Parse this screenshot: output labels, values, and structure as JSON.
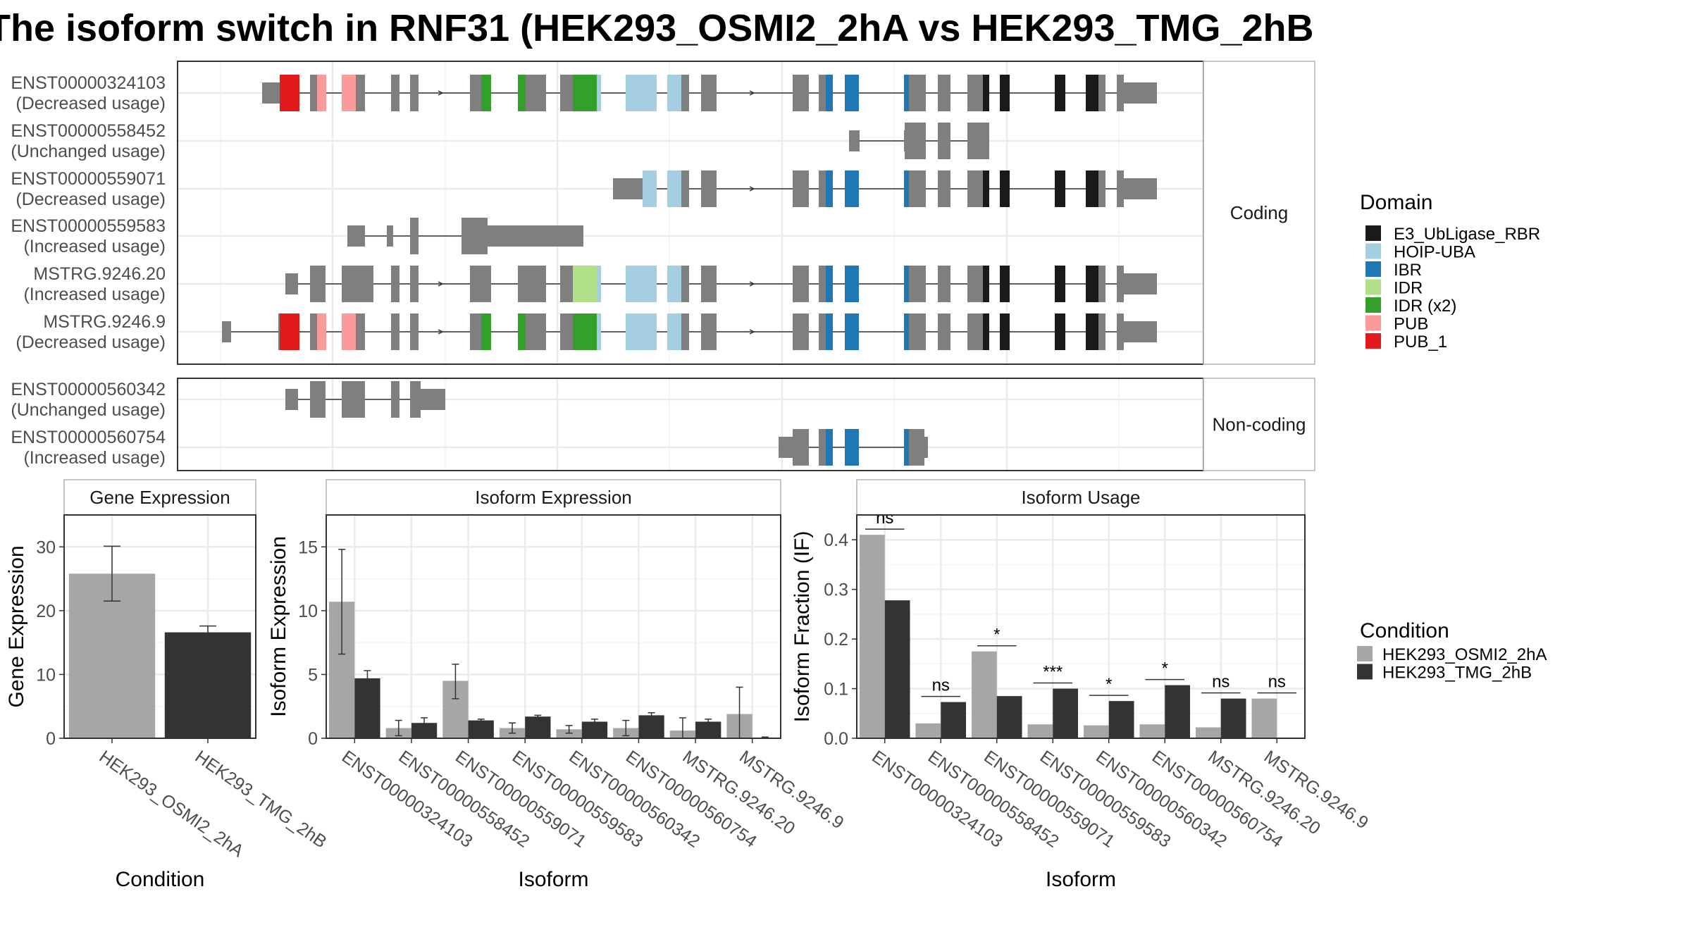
{
  "title": "The isoform switch in RNF31 (HEK293_OSMI2_2hA vs HEK293_TMG_2hB",
  "colors": {
    "E3_UbLigase_RBR": "#1a1a1a",
    "HOIP-UBA": "#a6cee3",
    "IBR": "#1f78b4",
    "IDR": "#b2df8a",
    "IDR (x2)": "#33a02c",
    "PUB": "#fb9a99",
    "PUB_1": "#e31a1c",
    "exon": "#7f7f7f",
    "cond1": "#a6a6a6",
    "cond2": "#333333",
    "grid": "#ebebeb",
    "frame": "#333333"
  },
  "structure": {
    "facets": [
      "Coding",
      "Non-coding"
    ],
    "domain_legend_title": "Domain",
    "domain_legend": [
      "E3_UbLigase_RBR",
      "HOIP-UBA",
      "IBR",
      "IDR",
      "IDR (x2)",
      "PUB",
      "PUB_1"
    ],
    "transcripts": [
      {
        "id": "ENST00000324103",
        "usage": "(Decreased usage)",
        "group": "Coding"
      },
      {
        "id": "ENST00000558452",
        "usage": "(Unchanged usage)",
        "group": "Coding"
      },
      {
        "id": "ENST00000559071",
        "usage": "(Decreased usage)",
        "group": "Coding"
      },
      {
        "id": "ENST00000559583",
        "usage": "(Increased usage)",
        "group": "Coding"
      },
      {
        "id": "MSTRG.9246.20",
        "usage": "(Increased usage)",
        "group": "Coding"
      },
      {
        "id": "MSTRG.9246.9",
        "usage": "(Decreased usage)",
        "group": "Coding"
      },
      {
        "id": "ENST00000560342",
        "usage": "(Unchanged usage)",
        "group": "Non-coding"
      },
      {
        "id": "ENST00000560754",
        "usage": "(Increased usage)",
        "group": "Non-coding"
      }
    ]
  },
  "condition_legend": {
    "title": "Condition",
    "items": [
      "HEK293_OSMI2_2hA",
      "HEK293_TMG_2hB"
    ]
  },
  "chart_data": [
    {
      "type": "bar",
      "title": "Gene Expression",
      "xlabel": "Condition",
      "ylabel": "Gene Expression",
      "categories": [
        "HEK293_OSMI2_2hA",
        "HEK293_TMG_2hB"
      ],
      "values": [
        25.8,
        16.6
      ],
      "errors": [
        [
          21.5,
          30.1
        ],
        [
          15.6,
          17.6
        ]
      ],
      "ylim": [
        0,
        35
      ],
      "yticks": [
        0,
        10,
        20,
        30
      ]
    },
    {
      "type": "bar",
      "title": "Isoform Expression",
      "xlabel": "Isoform",
      "ylabel": "Isoform Expression",
      "categories": [
        "ENST00000324103",
        "ENST00000558452",
        "ENST00000559071",
        "ENST00000559583",
        "ENST00000560342",
        "ENST00000560754",
        "MSTRG.9246.20",
        "MSTRG.9246.9"
      ],
      "series": [
        {
          "name": "HEK293_OSMI2_2hA",
          "values": [
            10.7,
            0.8,
            4.5,
            0.8,
            0.7,
            0.8,
            0.6,
            1.9
          ],
          "errors": [
            [
              6.6,
              14.8
            ],
            [
              0.2,
              1.4
            ],
            [
              3.1,
              5.8
            ],
            [
              0.4,
              1.2
            ],
            [
              0.4,
              1.0
            ],
            [
              0.2,
              1.4
            ],
            [
              0.0,
              1.6
            ],
            [
              0.0,
              4.0
            ]
          ]
        },
        {
          "name": "HEK293_TMG_2hB",
          "values": [
            4.7,
            1.2,
            1.4,
            1.7,
            1.3,
            1.8,
            1.3,
            0.05
          ],
          "errors": [
            [
              4.0,
              5.3
            ],
            [
              0.8,
              1.6
            ],
            [
              1.3,
              1.5
            ],
            [
              1.5,
              1.8
            ],
            [
              1.0,
              1.5
            ],
            [
              1.6,
              2.0
            ],
            [
              1.1,
              1.5
            ],
            [
              0.0,
              0.1
            ]
          ]
        }
      ],
      "ylim": [
        0,
        17.5
      ],
      "yticks": [
        0,
        5,
        10,
        15
      ]
    },
    {
      "type": "bar",
      "title": "Isoform Usage",
      "xlabel": "Isoform",
      "ylabel": "Isoform Fraction (IF)",
      "categories": [
        "ENST00000324103",
        "ENST00000558452",
        "ENST00000559071",
        "ENST00000559583",
        "ENST00000560342",
        "ENST00000560754",
        "MSTRG.9246.20",
        "MSTRG.9246.9"
      ],
      "series": [
        {
          "name": "HEK293_OSMI2_2hA",
          "values": [
            0.41,
            0.03,
            0.175,
            0.028,
            0.026,
            0.028,
            0.022,
            0.08
          ]
        },
        {
          "name": "HEK293_TMG_2hB",
          "values": [
            0.278,
            0.073,
            0.085,
            0.1,
            0.075,
            0.107,
            0.08,
            0.0
          ]
        }
      ],
      "significance": [
        "ns",
        "ns",
        "*",
        "***",
        "*",
        "*",
        "ns",
        "ns"
      ],
      "ylim": [
        0,
        0.45
      ],
      "yticks": [
        0.0,
        0.1,
        0.2,
        0.3,
        0.4
      ]
    }
  ]
}
